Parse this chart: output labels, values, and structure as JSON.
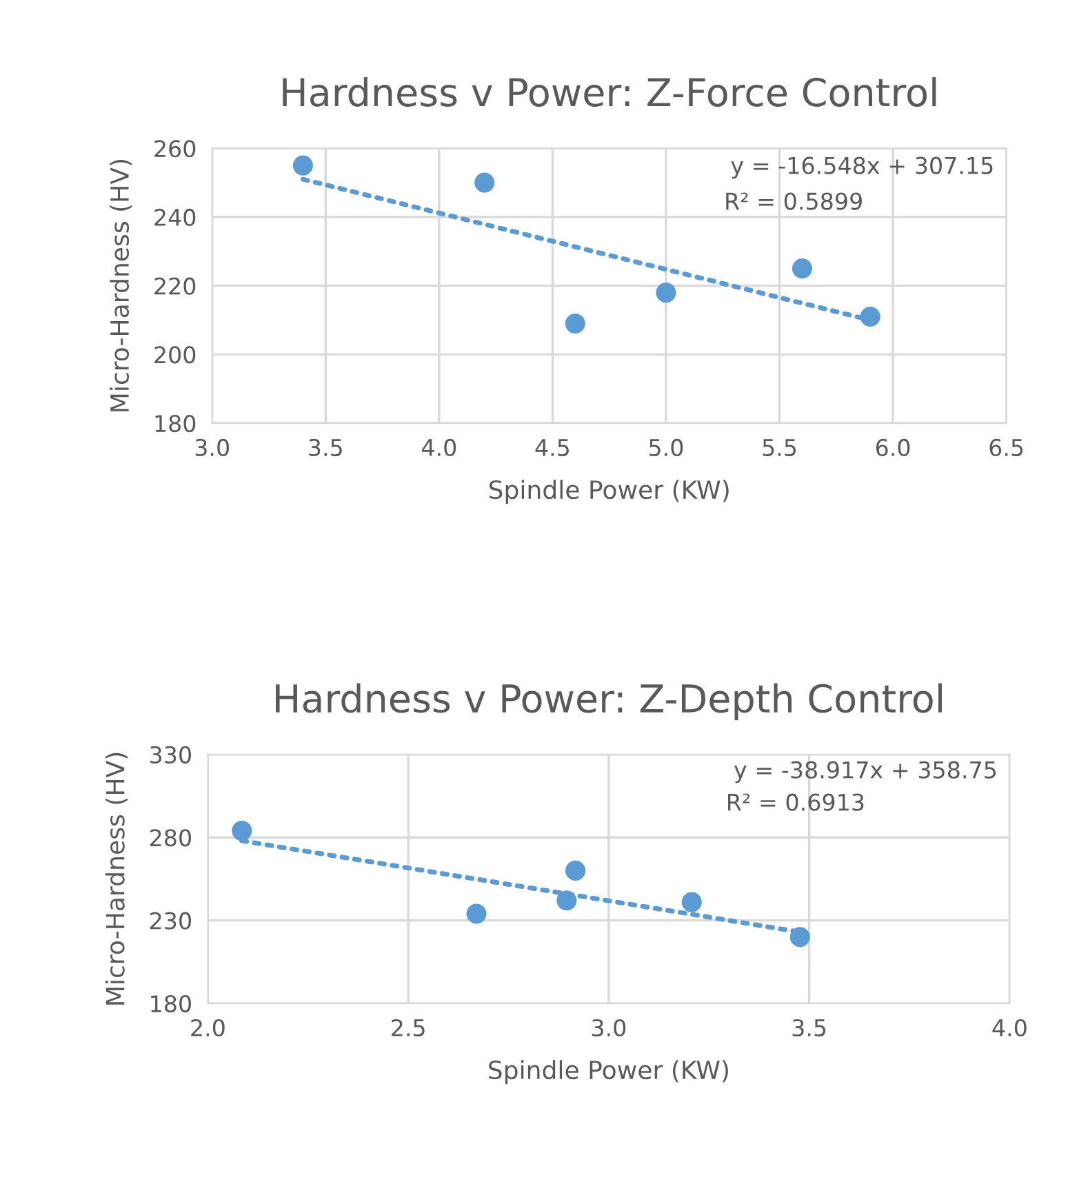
{
  "chart_data": [
    {
      "type": "scatter",
      "title": "Hardness v Power: Z-Force Control",
      "xlabel": "Spindle Power (KW)",
      "ylabel": "Micro-Hardness (HV)",
      "xlim": [
        3.0,
        6.5
      ],
      "xticks": [
        {
          "value": 3.0,
          "label": "3.0"
        },
        {
          "value": 3.5,
          "label": "3.5"
        },
        {
          "value": 4.0,
          "label": "4.0"
        },
        {
          "value": 4.5,
          "label": "4.5"
        },
        {
          "value": 5.0,
          "label": "5.0"
        },
        {
          "value": 5.5,
          "label": "5.5"
        },
        {
          "value": 6.0,
          "label": "6.0"
        },
        {
          "value": 6.5,
          "label": "6.5"
        }
      ],
      "ylim": [
        180,
        260
      ],
      "yticks": [
        180,
        200,
        220,
        240,
        260
      ],
      "grid": true,
      "legend": false,
      "series": [
        {
          "marker": "circle",
          "color": "#5b9bd5",
          "x": [
            3.4,
            4.2,
            4.6,
            5.0,
            5.6,
            5.9
          ],
          "values": [
            255,
            250,
            209,
            218,
            225,
            211
          ]
        },
        {
          "type": "line",
          "marker": "none",
          "color": "#5b9bd5",
          "line_style": "dotted",
          "x": [
            3.4,
            5.9
          ],
          "values": [
            251,
            210
          ]
        }
      ],
      "annotations": [
        "y = -16.548x + 307.15",
        "R² = 0.5899"
      ]
    },
    {
      "type": "scatter",
      "title": "Hardness v Power: Z-Depth Control",
      "xlabel": "Spindle Power (KW)",
      "ylabel": "Micro-Hardness (HV)",
      "xlim": [
        2.0,
        4.0
      ],
      "xticks": [
        {
          "value": 2.0,
          "label": "2.0"
        },
        {
          "value": 2.5,
          "label": "2.5"
        },
        {
          "value": 3.0,
          "label": "3.0"
        },
        {
          "value": 3.5,
          "label": "3.5"
        },
        {
          "value": 4.0,
          "label": "4.0"
        }
      ],
      "ylim": [
        180,
        330
      ],
      "yticks": [
        180,
        230,
        280,
        330
      ],
      "grid": true,
      "legend": false,
      "series": [
        {
          "marker": "circle",
          "color": "#5b9bd5",
          "x": [
            2.085,
            2.67,
            2.895,
            2.917,
            3.207,
            3.477
          ],
          "values": [
            284,
            234,
            242,
            260,
            241,
            220
          ]
        },
        {
          "type": "line",
          "marker": "none",
          "color": "#5b9bd5",
          "line_style": "dotted",
          "x": [
            2.085,
            3.477
          ],
          "values": [
            278,
            223
          ]
        }
      ],
      "annotations": [
        "y = -38.917x + 358.75",
        "R² = 0.6913"
      ]
    }
  ]
}
